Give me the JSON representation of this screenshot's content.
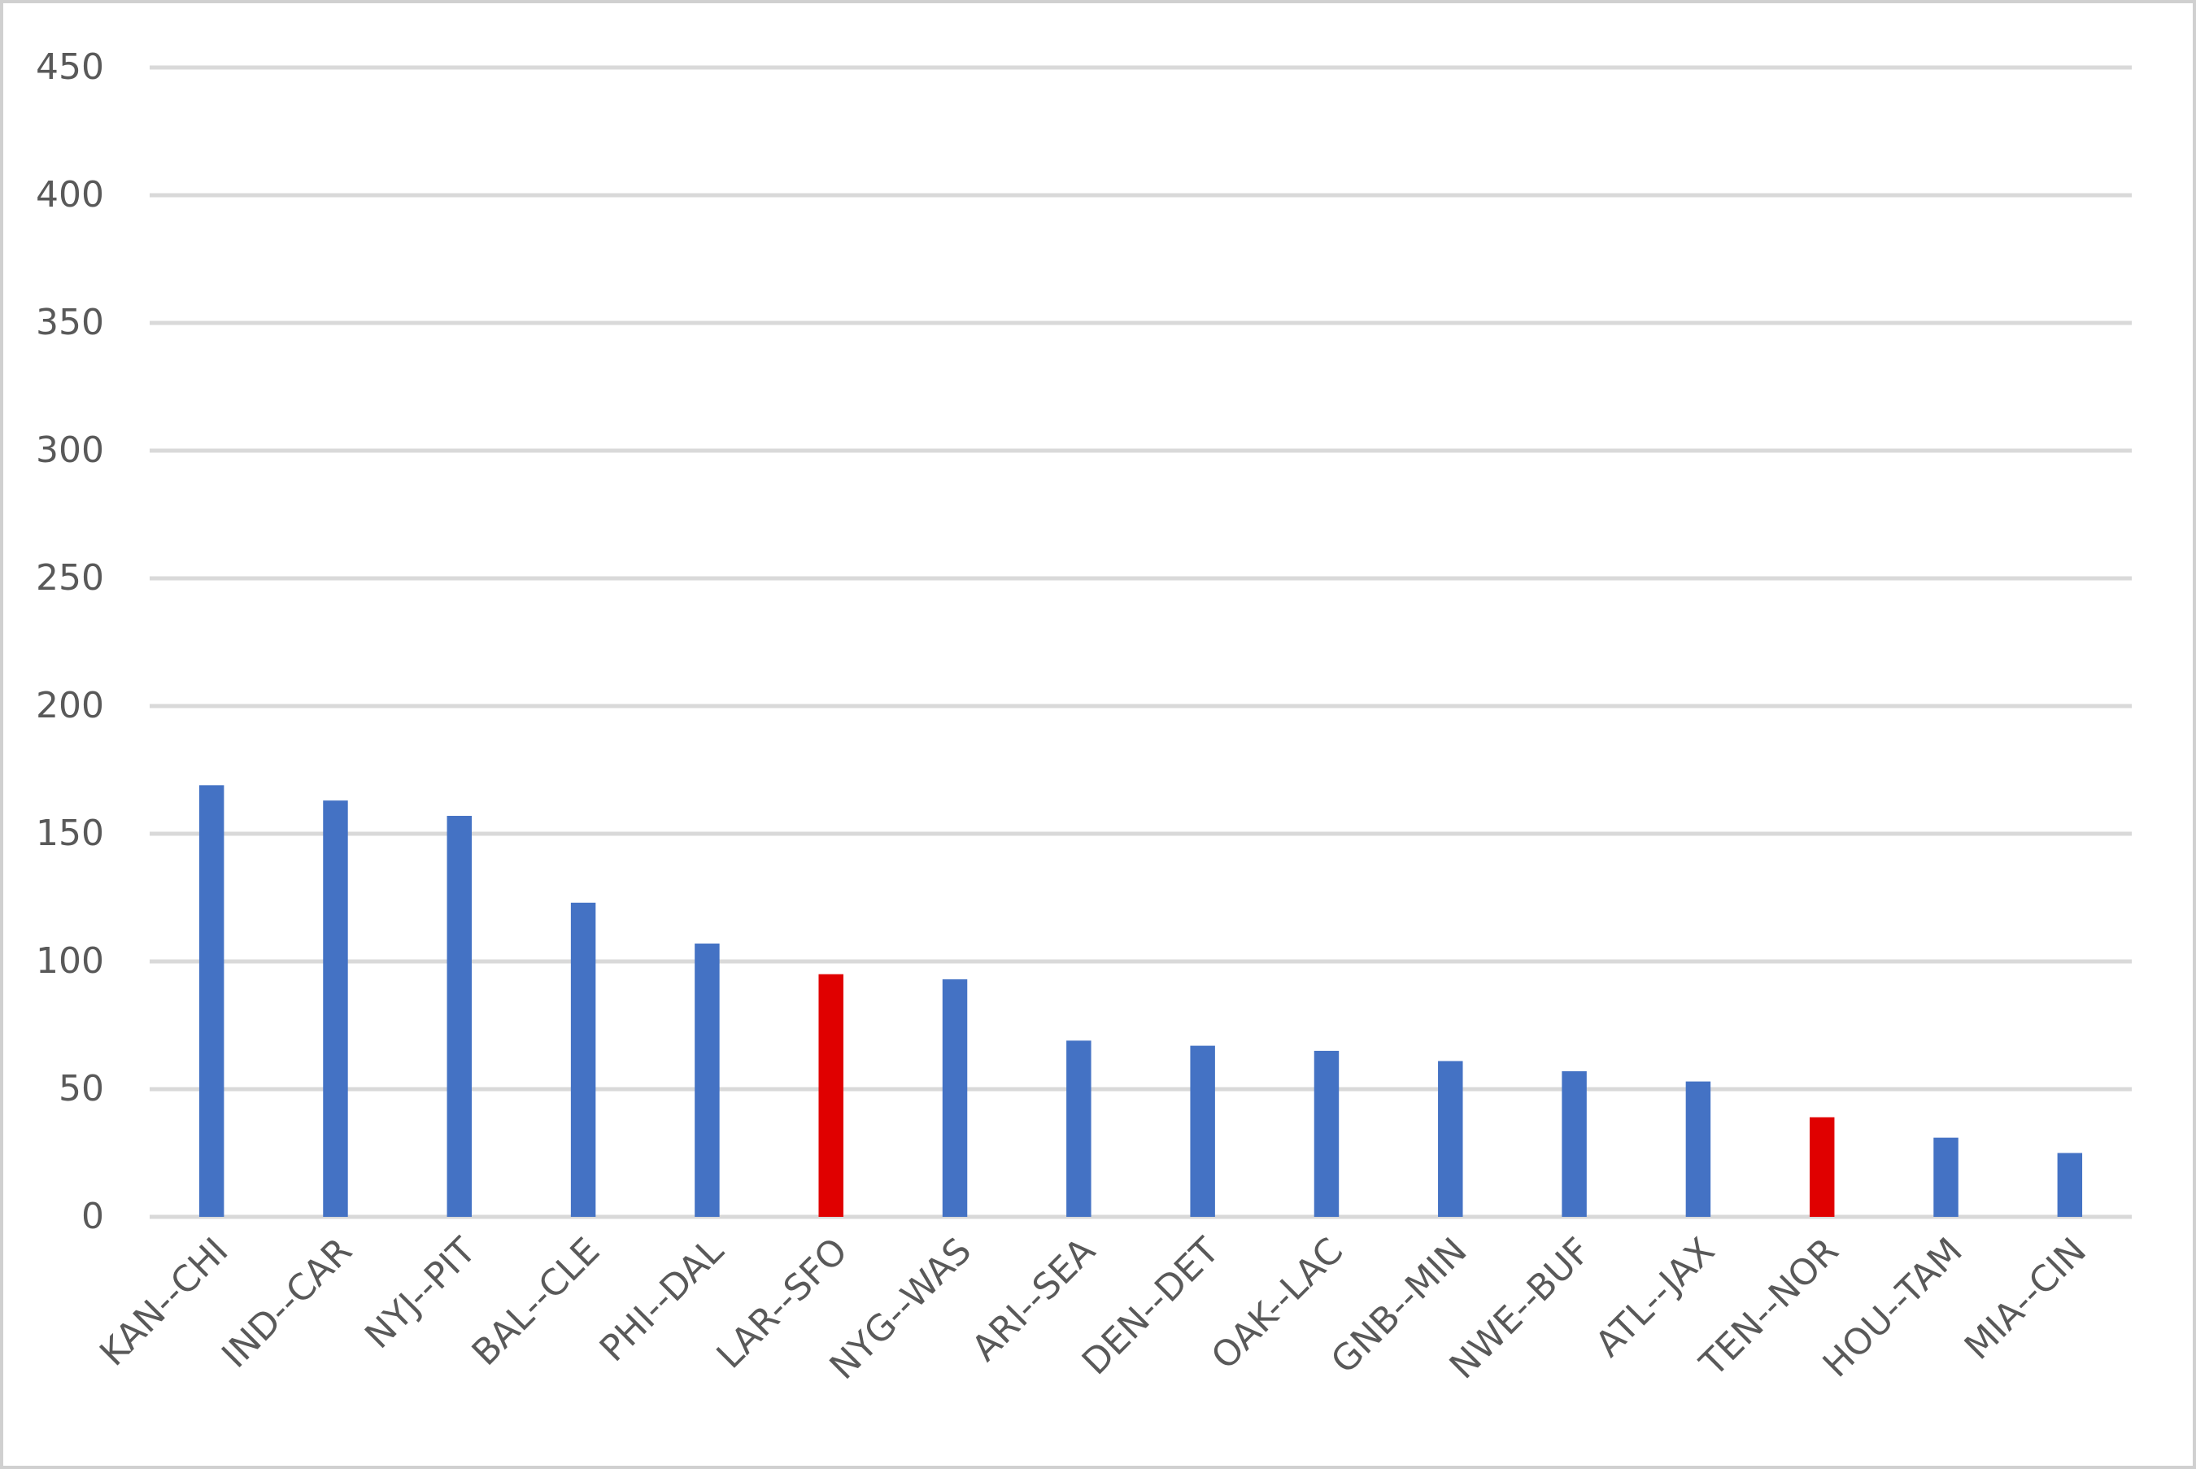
{
  "chart_data": {
    "type": "bar",
    "categories": [
      "KAN--CHI",
      "IND--CAR",
      "NYJ--PIT",
      "BAL--CLE",
      "PHI--DAL",
      "LAR--SFO",
      "NYG--WAS",
      "ARI--SEA",
      "DEN--DET",
      "OAK--LAC",
      "GNB--MIN",
      "NWE--BUF",
      "ATL--JAX",
      "TEN--NOR",
      "HOU--TAM",
      "MIA--CIN"
    ],
    "values": [
      169,
      163,
      157,
      123,
      107,
      95,
      93,
      69,
      67,
      65,
      61,
      57,
      53,
      39,
      31,
      25
    ],
    "colors": [
      "#4472c4",
      "#4472c4",
      "#4472c4",
      "#4472c4",
      "#4472c4",
      "#e00000",
      "#4472c4",
      "#4472c4",
      "#4472c4",
      "#4472c4",
      "#4472c4",
      "#4472c4",
      "#4472c4",
      "#e00000",
      "#4472c4",
      "#4472c4"
    ],
    "ylim": [
      0,
      450
    ],
    "yticks": [
      0,
      50,
      100,
      150,
      200,
      250,
      300,
      350,
      400,
      450
    ],
    "grid": true
  }
}
